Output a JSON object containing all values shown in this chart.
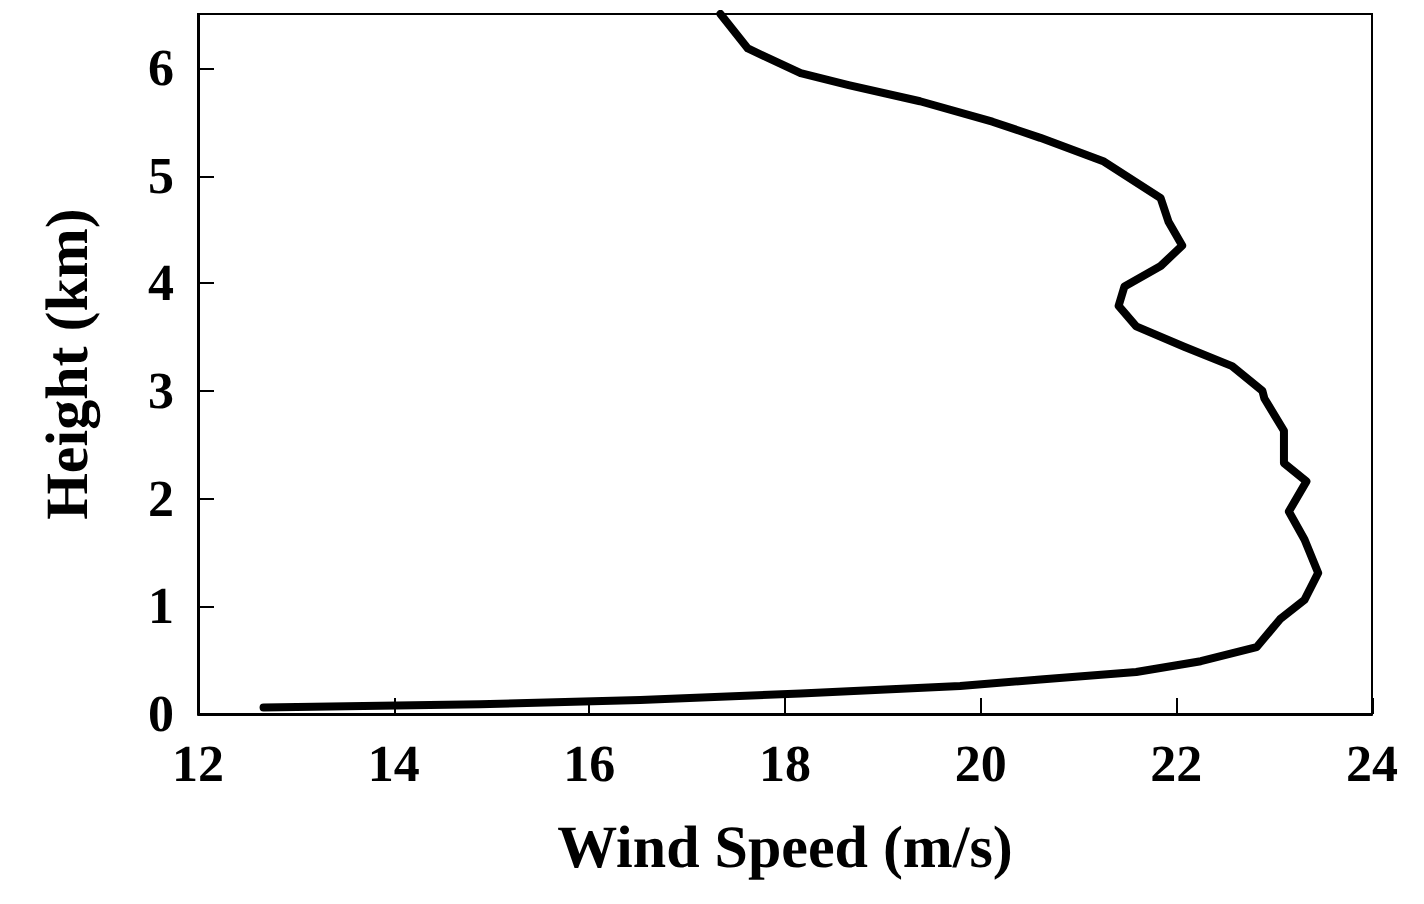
{
  "chart_data": {
    "type": "line",
    "xlabel": "Wind Speed (m/s)",
    "ylabel": "Height (km)",
    "xlim": [
      12,
      24
    ],
    "xticks": [
      12,
      14,
      16,
      18,
      20,
      22,
      24
    ],
    "ylim": [
      0,
      6.5
    ],
    "yticks": [
      0,
      1,
      2,
      3,
      4,
      5,
      6
    ],
    "grid": false,
    "marker": "none",
    "line_style": "solid",
    "series": [
      {
        "color": "#000000",
        "x": [
          12.67,
          14.88,
          16.52,
          18.16,
          19.79,
          20.61,
          21.59,
          22.25,
          22.82,
          23.06,
          23.31,
          23.45,
          23.31,
          23.15,
          23.33,
          23.1,
          23.1,
          22.9,
          22.88,
          22.57,
          22.08,
          21.59,
          21.41,
          21.47,
          21.84,
          22.06,
          21.92,
          21.84,
          21.26,
          20.61,
          20.12,
          19.38,
          18.65,
          18.16,
          17.62,
          17.34
        ],
        "values": [
          0.06,
          0.09,
          0.13,
          0.19,
          0.26,
          0.32,
          0.39,
          0.49,
          0.62,
          0.88,
          1.06,
          1.31,
          1.62,
          1.88,
          2.16,
          2.33,
          2.63,
          2.93,
          3.0,
          3.23,
          3.41,
          3.6,
          3.79,
          3.97,
          4.16,
          4.35,
          4.57,
          4.79,
          5.13,
          5.35,
          5.5,
          5.69,
          5.84,
          5.95,
          6.18,
          6.5
        ]
      }
    ]
  }
}
